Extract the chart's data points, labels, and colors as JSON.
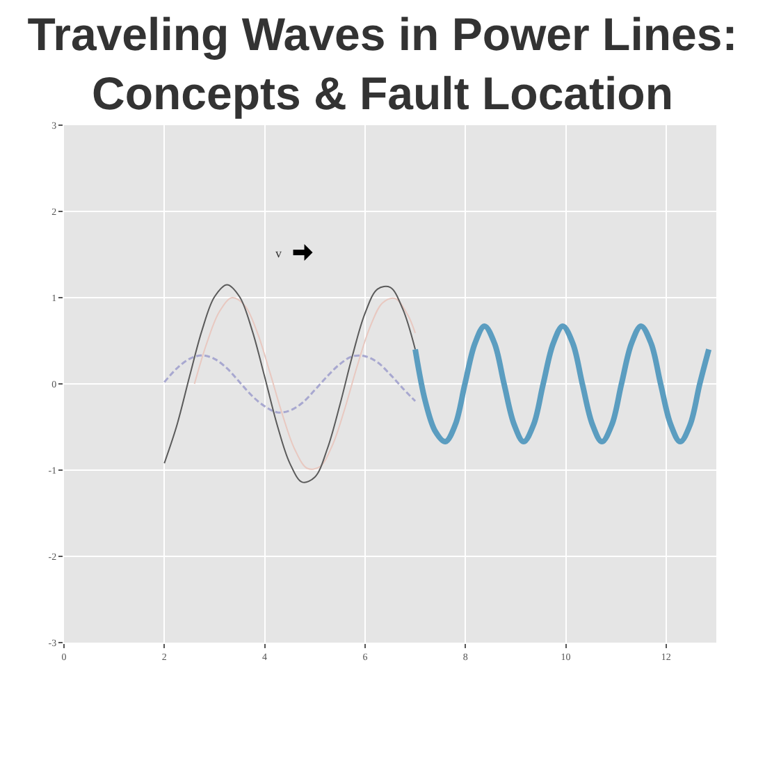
{
  "chart_data": {
    "type": "line",
    "title": "Traveling Waves in Power Lines:\nConcepts & Fault Location",
    "xlim": [
      0,
      13
    ],
    "xticks": [
      0,
      2,
      4,
      6,
      8,
      10,
      12
    ],
    "ylim": [
      -3,
      3
    ],
    "yticks": [
      -3,
      -2,
      -1,
      0,
      1,
      2,
      3
    ],
    "grid": true,
    "annotations": [
      "v"
    ],
    "series": [
      {
        "color": "#e8c8c0",
        "line_style": "solid",
        "x": [
          2.6,
          2.85,
          3.1,
          3.35,
          3.6,
          3.85,
          4.1,
          4.35,
          4.6,
          4.85,
          5.1,
          5.35,
          5.6,
          5.85,
          6.1,
          6.35,
          6.6,
          6.85,
          7.0
        ],
        "values": [
          0,
          0.48,
          0.84,
          1.0,
          0.91,
          0.6,
          0.14,
          -0.35,
          -0.76,
          -0.98,
          -0.96,
          -0.71,
          -0.28,
          0.22,
          0.66,
          0.94,
          0.99,
          0.8,
          0.59
        ]
      },
      {
        "color": "#a8a8d0",
        "line_style": "dashed",
        "x": [
          2,
          2.25,
          2.5,
          2.75,
          3,
          3.25,
          3.5,
          3.75,
          4,
          4.25,
          4.5,
          4.75,
          5,
          5.25,
          5.5,
          5.75,
          6,
          6.25,
          6.5,
          6.75,
          7
        ],
        "values": [
          0.02,
          0.18,
          0.29,
          0.33,
          0.29,
          0.18,
          0.02,
          -0.14,
          -0.26,
          -0.33,
          -0.31,
          -0.22,
          -0.07,
          0.09,
          0.23,
          0.32,
          0.32,
          0.25,
          0.11,
          -0.05,
          -0.2
        ]
      },
      {
        "color": "#5a5a5a",
        "line_style": "solid",
        "x": [
          2,
          2.25,
          2.5,
          2.75,
          3,
          3.25,
          3.5,
          3.75,
          4,
          4.25,
          4.5,
          4.75,
          5,
          5.25,
          5.5,
          5.75,
          6,
          6.25,
          6.5,
          6.75,
          7
        ],
        "values": [
          -0.92,
          -0.48,
          0.08,
          0.62,
          1.01,
          1.15,
          1.01,
          0.62,
          0.08,
          -0.48,
          -0.92,
          -1.14,
          -1.08,
          -0.75,
          -0.24,
          0.33,
          0.82,
          1.1,
          1.12,
          0.87,
          0.4
        ]
      },
      {
        "color": "#5b9dc0",
        "line_style": "solid",
        "x": [
          7.0,
          7.2,
          7.4,
          7.6,
          7.8,
          7.99,
          8.19,
          8.38,
          8.58,
          8.77,
          8.97,
          9.16,
          9.36,
          9.55,
          9.75,
          9.94,
          10.14,
          10.33,
          10.53,
          10.72,
          10.92,
          11.11,
          11.31,
          11.5,
          11.7,
          11.89,
          12.09,
          12.28,
          12.48,
          12.67,
          12.85
        ],
        "values": [
          0.4,
          -0.2,
          -0.55,
          -0.67,
          -0.47,
          0,
          0.47,
          0.67,
          0.47,
          0,
          -0.47,
          -0.67,
          -0.47,
          0,
          0.47,
          0.67,
          0.47,
          0,
          -0.47,
          -0.67,
          -0.47,
          0,
          0.47,
          0.67,
          0.47,
          0,
          -0.47,
          -0.67,
          -0.47,
          0,
          0.4
        ]
      }
    ]
  }
}
